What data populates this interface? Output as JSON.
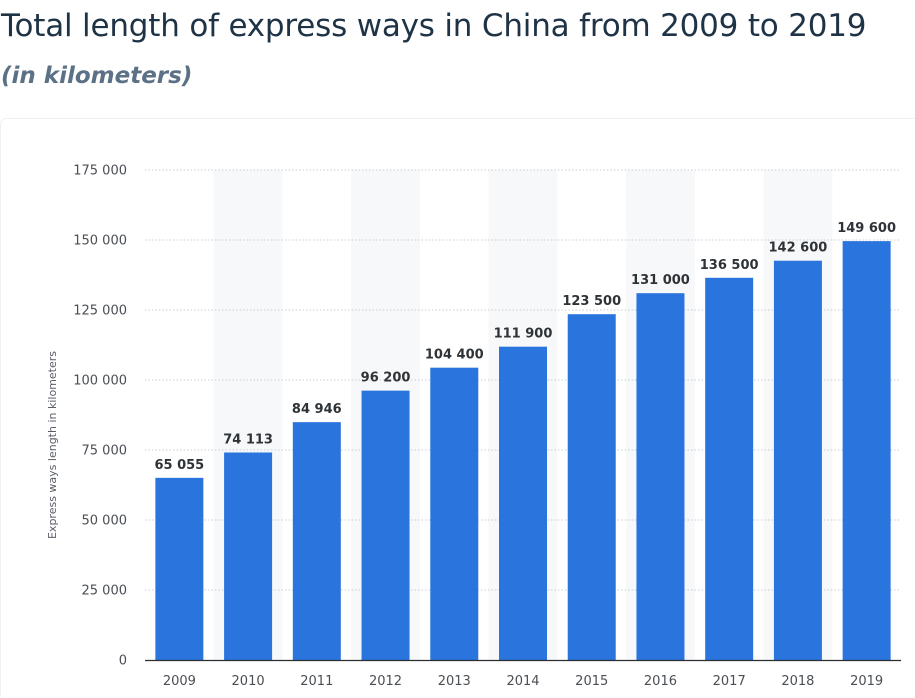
{
  "header": {
    "title": "Total length of express ways in China from 2009 to 2019",
    "subtitle": "(in kilometers)"
  },
  "chart_data": {
    "type": "bar",
    "categories": [
      "2009",
      "2010",
      "2011",
      "2012",
      "2013",
      "2014",
      "2015",
      "2016",
      "2017",
      "2018",
      "2019"
    ],
    "values": [
      65055,
      74113,
      84946,
      96200,
      104400,
      111900,
      123500,
      131000,
      136500,
      142600,
      149600
    ],
    "value_labels": [
      "65 055",
      "74 113",
      "84 946",
      "96 200",
      "104 400",
      "111 900",
      "123 500",
      "131 000",
      "136 500",
      "142 600",
      "149 600"
    ],
    "title": "Total length of express ways in China from 2009 to 2019",
    "subtitle": "(in kilometers)",
    "xlabel": "",
    "ylabel": "Express ways length in kilometers",
    "ylim": [
      0,
      175000
    ],
    "yticks": [
      0,
      25000,
      50000,
      75000,
      100000,
      125000,
      150000,
      175000
    ],
    "ytick_labels": [
      "0",
      "25 000",
      "50 000",
      "75 000",
      "100 000",
      "125 000",
      "150 000",
      "175 000"
    ],
    "grid": true,
    "legend": "none",
    "bar_color": "#2a74dd",
    "alt_column_shading": true
  }
}
